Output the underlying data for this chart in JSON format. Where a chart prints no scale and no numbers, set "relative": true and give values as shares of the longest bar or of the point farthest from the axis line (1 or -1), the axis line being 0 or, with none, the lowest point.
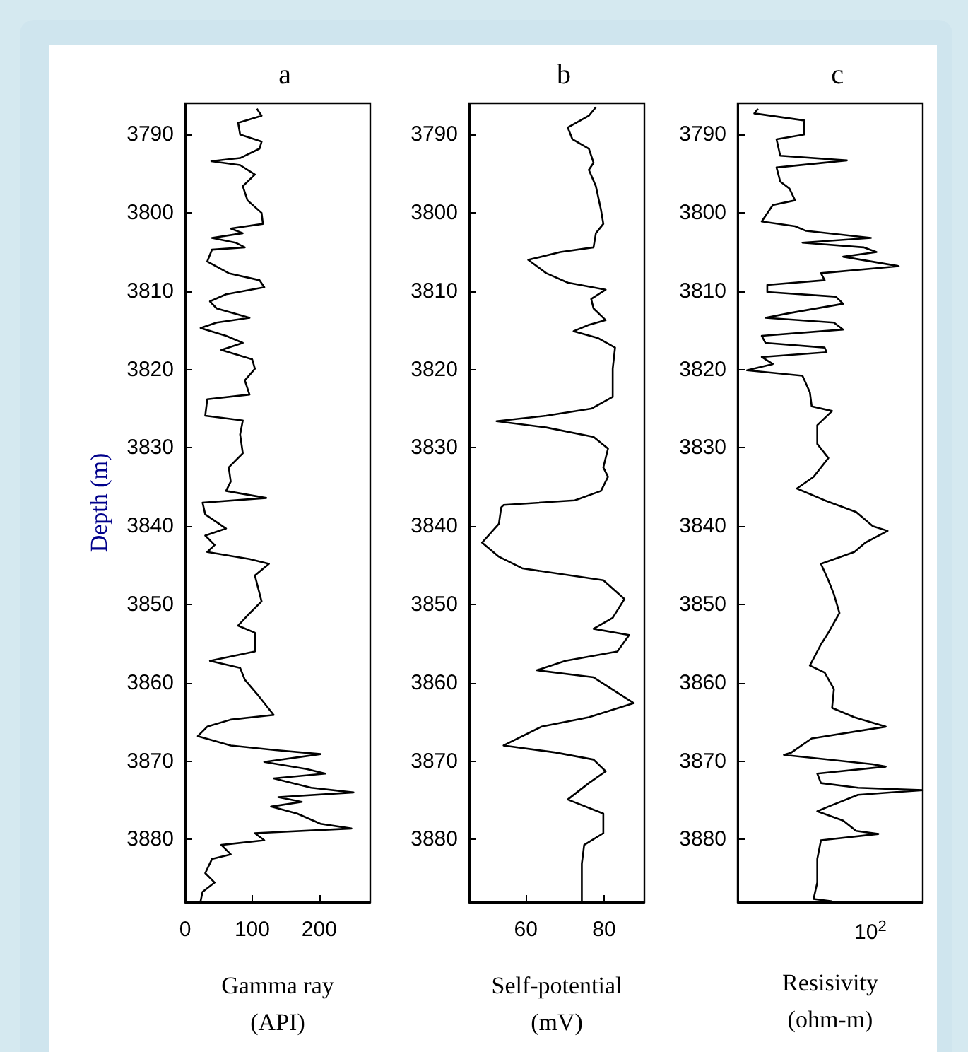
{
  "chart_data": [
    {
      "type": "line",
      "title": "a",
      "xlabel": "Gamma ray\n(API)",
      "ylabel": "Depth (m)",
      "orientation": "horizontal",
      "color": "#000000",
      "xlim": [
        0,
        276
      ],
      "xticks": [
        0,
        100,
        200
      ],
      "ylim": [
        3888,
        3786
      ],
      "yticks": [
        3790,
        3800,
        3810,
        3820,
        3830,
        3840,
        3850,
        3860,
        3870,
        3880
      ],
      "x": [
        3786.7,
        3787.6,
        3788.5,
        3790,
        3790.9,
        3791.8,
        3793,
        3793.4,
        3793.9,
        3795.1,
        3796.6,
        3798.4,
        3800,
        3801.4,
        3802,
        3802.6,
        3803.2,
        3803.8,
        3804.4,
        3804.7,
        3806.2,
        3807.7,
        3808.6,
        3809.5,
        3810.4,
        3811.3,
        3812.2,
        3813.4,
        3814,
        3814.7,
        3815.7,
        3816.6,
        3817.5,
        3818.7,
        3819.9,
        3821.4,
        3823.2,
        3823.8,
        3825.9,
        3826.5,
        3828.3,
        3830.7,
        3832.5,
        3834.3,
        3835.5,
        3836.4,
        3837,
        3838.5,
        3840.3,
        3841.2,
        3842.4,
        3843.3,
        3844.2,
        3844.8,
        3846.3,
        3849.6,
        3851.4,
        3852.7,
        3853.6,
        3856,
        3857.2,
        3858.1,
        3859.6,
        3861.4,
        3864.1,
        3864.7,
        3865.6,
        3866.8,
        3868,
        3868.6,
        3869.1,
        3870.1,
        3871,
        3871.6,
        3872.2,
        3873.4,
        3874,
        3874.6,
        3875.2,
        3875.8,
        3876.7,
        3878,
        3878.6,
        3879.2,
        3880.1,
        3880.7,
        3881.9,
        3882.5,
        3884.3,
        3885.5,
        3886.7,
        3887.9
      ],
      "values": [
        107,
        114,
        79,
        82,
        114,
        111,
        82,
        39,
        82,
        104,
        86,
        93,
        114,
        116,
        68,
        86,
        40,
        75,
        89,
        40,
        33,
        65,
        111,
        118,
        61,
        37,
        47,
        96,
        47,
        23,
        61,
        86,
        54,
        100,
        104,
        89,
        96,
        33,
        30,
        86,
        82,
        86,
        65,
        68,
        61,
        121,
        26,
        30,
        61,
        30,
        44,
        33,
        96,
        125,
        104,
        114,
        93,
        79,
        104,
        104,
        37,
        82,
        89,
        107,
        132,
        68,
        33,
        19,
        68,
        135,
        202,
        118,
        181,
        209,
        132,
        188,
        251,
        139,
        174,
        128,
        167,
        202,
        248,
        104,
        118,
        54,
        68,
        40,
        30,
        44,
        26,
        23
      ]
    },
    {
      "type": "line",
      "title": "b",
      "xlabel": "Self-potential\n(mV)",
      "orientation": "horizontal",
      "color": "#000000",
      "xlim": [
        45.5,
        90.3
      ],
      "xticks": [
        60,
        80
      ],
      "ylim": [
        3888,
        3786
      ],
      "yticks": [
        3790,
        3800,
        3810,
        3820,
        3830,
        3840,
        3850,
        3860,
        3870,
        3880
      ],
      "x": [
        3786.5,
        3787.6,
        3789.1,
        3790.6,
        3791.8,
        3793.6,
        3794.5,
        3796.6,
        3799.6,
        3801.4,
        3802.6,
        3804.4,
        3805,
        3806,
        3807.7,
        3808.9,
        3809.8,
        3811,
        3812.2,
        3813.7,
        3814.3,
        3815.1,
        3816,
        3817.2,
        3819.9,
        3823.5,
        3825,
        3825.9,
        3826.6,
        3827.4,
        3828.6,
        3830.1,
        3832.5,
        3833.7,
        3835.5,
        3836.7,
        3837.3,
        3837.6,
        3839.7,
        3842.1,
        3843.9,
        3845.4,
        3846.9,
        3849.3,
        3851.7,
        3853.1,
        3853.9,
        3856,
        3857.2,
        3858.4,
        3859.3,
        3862.6,
        3864.4,
        3865.6,
        3868,
        3868.9,
        3869.8,
        3871.3,
        3872.8,
        3874.9,
        3876.7,
        3879.2,
        3880.7,
        3883.1,
        3888.2
      ],
      "values": [
        77.9,
        76.1,
        70.7,
        71.9,
        76.1,
        77.3,
        76.1,
        77.9,
        79.2,
        79.8,
        77.9,
        77.3,
        68.8,
        60.6,
        65.2,
        70.7,
        80.4,
        76.7,
        77.3,
        80.4,
        76.1,
        72.2,
        78.5,
        82.8,
        82.2,
        82.2,
        76.7,
        65.2,
        52.5,
        65.2,
        77.3,
        81,
        79.8,
        81,
        79.2,
        72.5,
        54.3,
        53.7,
        53.1,
        48.8,
        53.1,
        59.2,
        79.8,
        85.2,
        82.2,
        77.3,
        86.4,
        83.4,
        70.1,
        62.8,
        77.3,
        87.6,
        76.1,
        64,
        54.3,
        67.6,
        77.3,
        80.4,
        76.1,
        70.7,
        79.8,
        79.8,
        74.9,
        74.3,
        74.3
      ]
    },
    {
      "type": "line",
      "title": "c",
      "xlabel": "Resisivity\n(ohm-m)",
      "annotations": [
        "10$^{2}$"
      ],
      "orientation": "horizontal",
      "relative": true,
      "color": "#000000",
      "ylim": [
        3888,
        3786
      ],
      "yticks": [
        3790,
        3800,
        3810,
        3820,
        3830,
        3840,
        3850,
        3860,
        3870,
        3880
      ],
      "x": [
        3786.7,
        3787.3,
        3788.2,
        3790,
        3790.6,
        3792.7,
        3793.3,
        3794.2,
        3796,
        3796.9,
        3798.4,
        3799,
        3801.1,
        3801.7,
        3802.3,
        3803.2,
        3803.8,
        3804.4,
        3805,
        3805.6,
        3806.8,
        3807.7,
        3808.6,
        3809.2,
        3810.1,
        3810.7,
        3811.6,
        3812.8,
        3813.4,
        3814,
        3814.9,
        3815.7,
        3816.6,
        3817.2,
        3817.8,
        3818.4,
        3819.3,
        3820.1,
        3820.8,
        3822.9,
        3824.7,
        3825.3,
        3827.1,
        3829.5,
        3831.3,
        3833.7,
        3835.2,
        3836.7,
        3838.2,
        3840,
        3840.6,
        3842.1,
        3843.3,
        3844.8,
        3846.9,
        3848.7,
        3851.1,
        3853.6,
        3855.1,
        3857.8,
        3858.7,
        3860.8,
        3863.2,
        3864.4,
        3865.6,
        3867.1,
        3868.9,
        3869.2,
        3870.4,
        3870.7,
        3871.6,
        3872.8,
        3873.4,
        3873.7,
        3874.3,
        3875.8,
        3876.4,
        3877.6,
        3878.9,
        3879.3,
        3880.1,
        3882.5,
        3885.5,
        3887.6,
        3887.9
      ],
      "values": [
        0.11,
        0.09,
        0.36,
        0.36,
        0.21,
        0.23,
        0.59,
        0.21,
        0.23,
        0.28,
        0.31,
        0.19,
        0.13,
        0.31,
        0.37,
        0.72,
        0.35,
        0.68,
        0.75,
        0.57,
        0.87,
        0.45,
        0.47,
        0.16,
        0.16,
        0.53,
        0.57,
        0.28,
        0.15,
        0.52,
        0.57,
        0.13,
        0.15,
        0.47,
        0.48,
        0.13,
        0.19,
        0.05,
        0.35,
        0.39,
        0.4,
        0.51,
        0.43,
        0.43,
        0.49,
        0.41,
        0.32,
        0.47,
        0.64,
        0.73,
        0.81,
        0.69,
        0.63,
        0.45,
        0.49,
        0.52,
        0.55,
        0.49,
        0.45,
        0.39,
        0.47,
        0.52,
        0.51,
        0.63,
        0.8,
        0.4,
        0.29,
        0.25,
        0.73,
        0.8,
        0.43,
        0.45,
        0.65,
        1,
        0.65,
        0.49,
        0.43,
        0.57,
        0.64,
        0.76,
        0.45,
        0.43,
        0.43,
        0.41,
        0.51
      ]
    }
  ]
}
